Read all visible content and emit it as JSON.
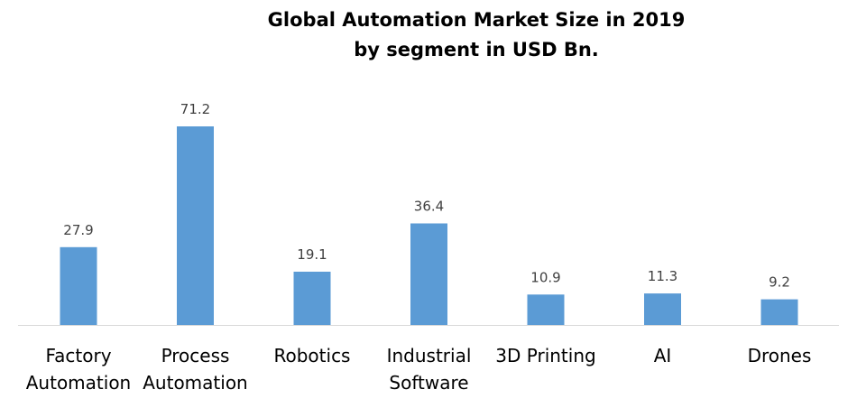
{
  "chart_data": {
    "type": "bar",
    "title": "Global Automation Market Size in 2019 by segment in USD Bn.",
    "title_lines": [
      "Global Automation Market Size in 2019",
      "by segment in USD Bn."
    ],
    "categories": [
      "Factory Automation",
      "Process Automation",
      "Robotics",
      "Industrial Software",
      "3D Printing",
      "AI",
      "Drones"
    ],
    "category_lines": [
      [
        "Factory",
        "Automation"
      ],
      [
        "Process",
        "Automation"
      ],
      [
        "Robotics"
      ],
      [
        "Industrial",
        "Software"
      ],
      [
        "3D Printing"
      ],
      [
        "AI"
      ],
      [
        "Drones"
      ]
    ],
    "values": [
      27.9,
      71.2,
      19.1,
      36.4,
      10.9,
      11.3,
      9.2
    ],
    "data_labels": [
      "27.9",
      "71.2",
      "19.1",
      "36.4",
      "10.9",
      "11.3",
      "9.2"
    ],
    "xlabel": "",
    "ylabel": "",
    "ylim": [
      0,
      71.2
    ],
    "grid": false,
    "legend": "none",
    "colors": {
      "bar": "#5B9BD5",
      "data_label": "#404040",
      "category_label": "#000000",
      "baseline": "#D9D9D9"
    }
  }
}
